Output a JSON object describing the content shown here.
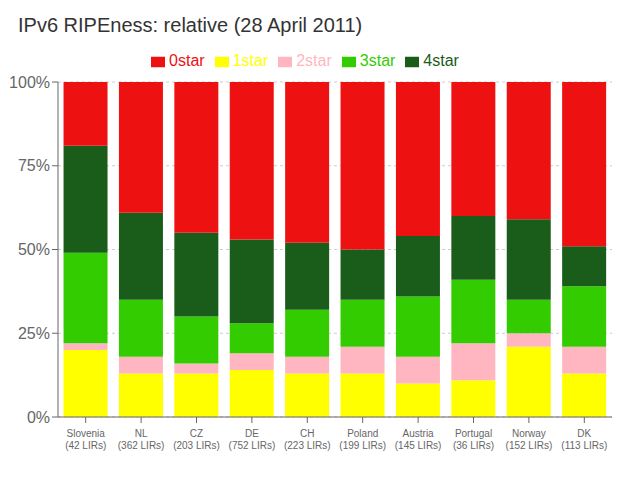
{
  "chart_data": {
    "type": "bar",
    "title": "IPv6 RIPEness: relative (28 April 2011)",
    "stacked": true,
    "categories": [
      "Slovenia\n(42 LIRs)",
      "NL\n(362 LIRs)",
      "CZ\n(203 LIRs)",
      "DE\n(752 LIRs)",
      "CH\n(223 LIRs)",
      "Poland\n(199 LIRs)",
      "Austria\n(145 LIRs)",
      "Portugal\n(36 LIRs)",
      "Norway\n(152 LIRs)",
      "DK\n(113 LIRs)"
    ],
    "series": [
      {
        "name": "1star",
        "color": "#FFFF00",
        "values": [
          20,
          13,
          13,
          14,
          13,
          13,
          10,
          11,
          21,
          13
        ]
      },
      {
        "name": "2star",
        "color": "#FFB6C1",
        "values": [
          2,
          5,
          3,
          5,
          5,
          8,
          8,
          11,
          4,
          8
        ]
      },
      {
        "name": "3star",
        "color": "#33CC00",
        "values": [
          27,
          17,
          14,
          9,
          14,
          14,
          18,
          19,
          10,
          18
        ]
      },
      {
        "name": "4star",
        "color": "#1A5C1A",
        "values": [
          32,
          26,
          25,
          25,
          20,
          15,
          18,
          19,
          24,
          12
        ]
      },
      {
        "name": "0star",
        "color": "#EE1111",
        "values": [
          19,
          39,
          45,
          47,
          48,
          50,
          46,
          40,
          41,
          49
        ]
      }
    ],
    "ylim": [
      0,
      100
    ],
    "yticks": [
      {
        "value": 0,
        "label": "0%"
      },
      {
        "value": 25,
        "label": "25%"
      },
      {
        "value": 50,
        "label": "50%"
      },
      {
        "value": 75,
        "label": "75%"
      },
      {
        "value": 100,
        "label": "100%"
      }
    ],
    "grid": true,
    "legend": "top"
  }
}
